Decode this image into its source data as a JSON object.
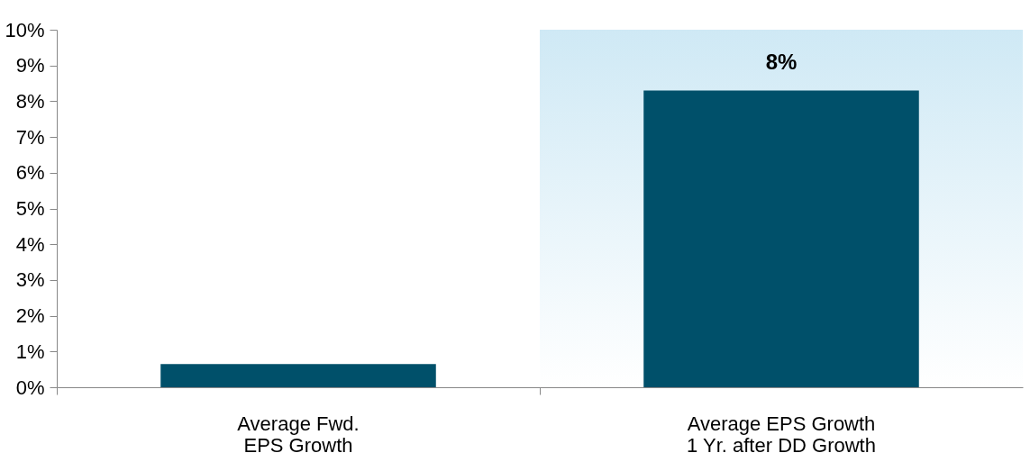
{
  "chart_data": {
    "type": "bar",
    "categories": [
      "Average Fwd.\nEPS Growth",
      "Average EPS Growth\n1 Yr. after DD Growth"
    ],
    "values": [
      0.65,
      8.3
    ],
    "color": "#00506a",
    "value_labels": [
      null,
      "8%"
    ],
    "ylim": [
      0,
      10
    ],
    "yticks": [
      {
        "value": 0,
        "label": "0%"
      },
      {
        "value": 1,
        "label": "1%"
      },
      {
        "value": 2,
        "label": "2%"
      },
      {
        "value": 3,
        "label": "3%"
      },
      {
        "value": 4,
        "label": "4%"
      },
      {
        "value": 5,
        "label": "5%"
      },
      {
        "value": 6,
        "label": "6%"
      },
      {
        "value": 7,
        "label": "7%"
      },
      {
        "value": 8,
        "label": "8%"
      },
      {
        "value": 9,
        "label": "9%"
      },
      {
        "value": 10,
        "label": "10%"
      }
    ],
    "bands": [
      {
        "axis": "x",
        "from": "Average EPS Growth\n1 Yr. after DD Growth",
        "to": "Average EPS Growth\n1 Yr. after DD Growth",
        "color": "#cfe9f5"
      }
    ],
    "grid": false
  }
}
